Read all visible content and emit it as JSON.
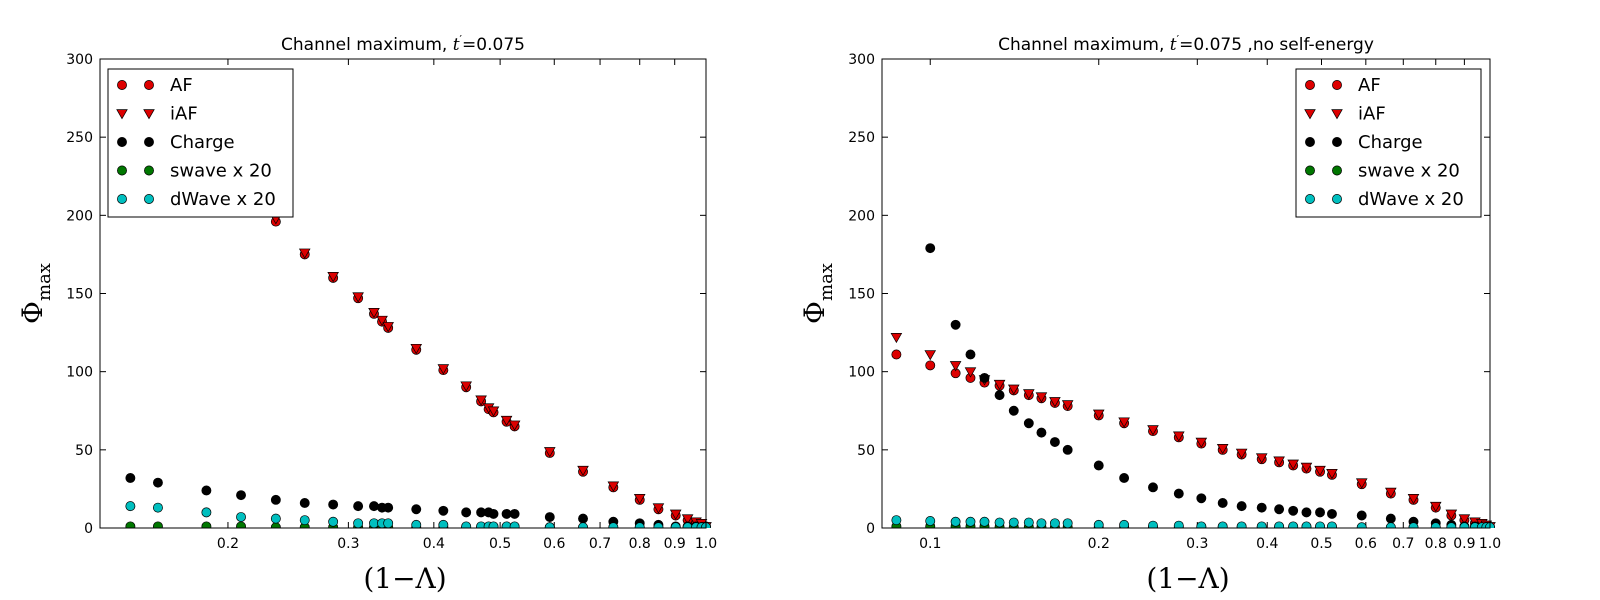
{
  "chart_data": [
    {
      "type": "scatter",
      "title_prefix": "Channel maximum, ",
      "title_tprime": "t",
      "title_mid": "=0.075",
      "title_suffix": "",
      "xlabel": "(1−Λ)",
      "ylabel_main": "Φ",
      "ylabel_sub": "max",
      "x_scale": "log",
      "xlim": [
        0.13,
        1.0
      ],
      "ylim": [
        0,
        300
      ],
      "yticks": [
        0,
        50,
        100,
        150,
        200,
        250,
        300
      ],
      "xticks": [
        {
          "value": 0.2,
          "label": "0.2"
        },
        {
          "value": 0.3,
          "label": "0.3"
        },
        {
          "value": 0.4,
          "label": "0.4"
        },
        {
          "value": 0.5,
          "label": "0.5"
        },
        {
          "value": 0.6,
          "label": "0.6"
        },
        {
          "value": 0.7,
          "label": "0.7"
        },
        {
          "value": 0.8,
          "label": "0.8"
        },
        {
          "value": 0.9,
          "label": "0.9"
        },
        {
          "value": 1.0,
          "label": "1.0"
        }
      ],
      "grid": false,
      "legend_position": "upper-left",
      "series": [
        {
          "name": "AF",
          "marker": "circle",
          "color": "#dd0000",
          "x": [
            0.235,
            0.259,
            0.285,
            0.31,
            0.327,
            0.336,
            0.343,
            0.377,
            0.413,
            0.446,
            0.469,
            0.481,
            0.489,
            0.511,
            0.525,
            0.591,
            0.661,
            0.732,
            0.8,
            0.852,
            0.903,
            0.94,
            0.967,
            0.985,
            1.0
          ],
          "y": [
            196,
            175,
            160,
            147,
            137,
            132,
            128,
            114,
            101,
            90,
            81,
            76,
            74,
            68,
            65,
            48,
            36,
            26,
            18,
            12,
            8,
            5,
            3,
            2,
            1
          ]
        },
        {
          "name": "iAF",
          "marker": "triangle-down",
          "color": "#dd0000",
          "x": [
            0.235,
            0.259,
            0.285,
            0.31,
            0.327,
            0.336,
            0.343,
            0.377,
            0.413,
            0.446,
            0.469,
            0.481,
            0.489,
            0.511,
            0.525,
            0.591,
            0.661,
            0.732,
            0.8,
            0.852,
            0.903,
            0.94,
            0.967,
            0.985,
            1.0
          ],
          "y": [
            198,
            176,
            161,
            148,
            138,
            133,
            129,
            115,
            102,
            91,
            82,
            77,
            75,
            69,
            66,
            49,
            37,
            27,
            19,
            13,
            9,
            6,
            4,
            3,
            1
          ]
        },
        {
          "name": "Charge",
          "marker": "circle",
          "color": "#000000",
          "x": [
            0.144,
            0.158,
            0.186,
            0.209,
            0.235,
            0.259,
            0.285,
            0.31,
            0.327,
            0.336,
            0.343,
            0.377,
            0.413,
            0.446,
            0.469,
            0.481,
            0.489,
            0.511,
            0.525,
            0.591,
            0.661,
            0.732,
            0.8,
            0.852,
            0.903,
            0.94,
            0.967,
            1.0
          ],
          "y": [
            32,
            29,
            24,
            21,
            18,
            16,
            15,
            14,
            14,
            13,
            13,
            12,
            11,
            10,
            10,
            10,
            9,
            9,
            9,
            7,
            6,
            4,
            3,
            2,
            1,
            1,
            1,
            0
          ]
        },
        {
          "name": "swave x 20",
          "marker": "circle",
          "color": "#007700",
          "x": [
            0.144,
            0.158,
            0.186,
            0.209,
            0.235,
            0.259,
            0.285,
            0.31,
            0.327,
            0.336,
            0.343,
            0.377,
            0.413,
            0.446,
            0.469,
            0.481,
            0.489,
            0.511,
            0.525,
            0.591,
            0.661,
            0.732,
            0.8,
            0.852,
            0.903,
            0.94,
            0.967,
            1.0
          ],
          "y": [
            1,
            1,
            1,
            1,
            0.5,
            0.5,
            0.5,
            0.5,
            0.5,
            0.5,
            0.5,
            0.5,
            0.5,
            0.5,
            0.5,
            0.5,
            0.5,
            0.5,
            0.5,
            0.5,
            0,
            0,
            0,
            0,
            0,
            0,
            0,
            0
          ]
        },
        {
          "name": "dWave x 20",
          "marker": "circle",
          "color": "#00bfbf",
          "x": [
            0.144,
            0.158,
            0.186,
            0.209,
            0.235,
            0.259,
            0.285,
            0.31,
            0.327,
            0.336,
            0.343,
            0.377,
            0.413,
            0.446,
            0.469,
            0.481,
            0.489,
            0.511,
            0.525,
            0.591,
            0.661,
            0.732,
            0.8,
            0.852,
            0.903,
            0.94,
            0.967,
            0.985,
            1.0
          ],
          "y": [
            14,
            13,
            10,
            7,
            6,
            5,
            4,
            3,
            3,
            3,
            3,
            2,
            2,
            1,
            1,
            1,
            1,
            1,
            1,
            0.5,
            0.5,
            0.5,
            0.5,
            0.5,
            0.5,
            0.5,
            0.5,
            0.5,
            0.5
          ]
        }
      ]
    },
    {
      "type": "scatter",
      "title_prefix": "Channel maximum, ",
      "title_tprime": "t",
      "title_mid": "=0.075",
      "title_suffix": " ,no self-energy",
      "xlabel": "(1−Λ)",
      "ylabel_main": "Φ",
      "ylabel_sub": "max",
      "x_scale": "log",
      "xlim": [
        0.082,
        1.0
      ],
      "ylim": [
        0,
        300
      ],
      "yticks": [
        0,
        50,
        100,
        150,
        200,
        250,
        300
      ],
      "xticks": [
        {
          "value": 0.1,
          "label": "0.1"
        },
        {
          "value": 0.2,
          "label": "0.2"
        },
        {
          "value": 0.3,
          "label": "0.3"
        },
        {
          "value": 0.4,
          "label": "0.4"
        },
        {
          "value": 0.5,
          "label": "0.5"
        },
        {
          "value": 0.6,
          "label": "0.6"
        },
        {
          "value": 0.7,
          "label": "0.7"
        },
        {
          "value": 0.8,
          "label": "0.8"
        },
        {
          "value": 0.9,
          "label": "0.9"
        },
        {
          "value": 1.0,
          "label": "1.0"
        }
      ],
      "grid": false,
      "legend_position": "upper-right",
      "series": [
        {
          "name": "AF",
          "marker": "circle",
          "color": "#dd0000",
          "x": [
            0.087,
            0.1,
            0.111,
            0.118,
            0.125,
            0.133,
            0.141,
            0.15,
            0.158,
            0.167,
            0.176,
            0.2,
            0.222,
            0.25,
            0.278,
            0.305,
            0.333,
            0.36,
            0.391,
            0.42,
            0.445,
            0.47,
            0.497,
            0.522,
            0.59,
            0.665,
            0.73,
            0.8,
            0.853,
            0.9,
            0.94,
            0.967,
            0.985,
            1.0
          ],
          "y": [
            111,
            104,
            99,
            96,
            93,
            91,
            88,
            85,
            83,
            80,
            78,
            72,
            67,
            62,
            58,
            54,
            50,
            47,
            44,
            42,
            40,
            38,
            36,
            34,
            28,
            22,
            18,
            13,
            8,
            5,
            3,
            2,
            1,
            0.5
          ]
        },
        {
          "name": "iAF",
          "marker": "triangle-down",
          "color": "#dd0000",
          "x": [
            0.087,
            0.1,
            0.111,
            0.118,
            0.125,
            0.133,
            0.141,
            0.15,
            0.158,
            0.167,
            0.176,
            0.2,
            0.222,
            0.25,
            0.278,
            0.305,
            0.333,
            0.36,
            0.391,
            0.42,
            0.445,
            0.47,
            0.497,
            0.522,
            0.59,
            0.665,
            0.73,
            0.8,
            0.853,
            0.9,
            0.94,
            0.967,
            0.985,
            1.0
          ],
          "y": [
            122,
            111,
            104,
            100,
            95,
            92,
            89,
            86,
            84,
            81,
            79,
            73,
            68,
            63,
            59,
            55,
            51,
            48,
            45,
            43,
            41,
            39,
            37,
            35,
            29,
            23,
            19,
            14,
            9,
            6,
            4,
            3,
            2,
            1
          ]
        },
        {
          "name": "Charge",
          "marker": "circle",
          "color": "#000000",
          "x": [
            0.1,
            0.111,
            0.118,
            0.125,
            0.133,
            0.141,
            0.15,
            0.158,
            0.167,
            0.176,
            0.2,
            0.222,
            0.25,
            0.278,
            0.305,
            0.333,
            0.36,
            0.391,
            0.42,
            0.445,
            0.47,
            0.497,
            0.522,
            0.59,
            0.665,
            0.73,
            0.8,
            0.853,
            0.9,
            0.94,
            0.967,
            1.0
          ],
          "y": [
            179,
            130,
            111,
            96,
            85,
            75,
            67,
            61,
            55,
            50,
            40,
            32,
            26,
            22,
            19,
            16,
            14,
            13,
            12,
            11,
            10,
            10,
            9,
            8,
            6,
            4,
            3,
            2,
            1,
            1,
            0.5,
            0
          ]
        },
        {
          "name": "swave x 20",
          "marker": "circle",
          "color": "#007700",
          "x": [
            0.087,
            0.1,
            0.111,
            0.118,
            0.125,
            0.133,
            0.141,
            0.15,
            0.158,
            0.167,
            0.176,
            0.2,
            0.222,
            0.25,
            0.278,
            0.305,
            0.333,
            0.36,
            0.391,
            0.42,
            0.445,
            0.47,
            0.497,
            0.522,
            0.59,
            0.665,
            0.73,
            0.8,
            0.853,
            0.9,
            0.94,
            0.967,
            1.0
          ],
          "y": [
            1,
            1,
            1,
            1,
            1,
            0.5,
            0.5,
            0.5,
            0.5,
            0.5,
            0.5,
            0.5,
            0.5,
            0.5,
            0.5,
            0.5,
            0.5,
            0.5,
            0.5,
            0.5,
            0.5,
            0.5,
            0.5,
            0.5,
            0,
            0,
            0,
            0,
            0,
            0,
            0,
            0,
            0
          ]
        },
        {
          "name": "dWave x 20",
          "marker": "circle",
          "color": "#00bfbf",
          "x": [
            0.087,
            0.1,
            0.111,
            0.118,
            0.125,
            0.133,
            0.141,
            0.15,
            0.158,
            0.167,
            0.176,
            0.2,
            0.222,
            0.25,
            0.278,
            0.305,
            0.333,
            0.36,
            0.391,
            0.42,
            0.445,
            0.47,
            0.497,
            0.522,
            0.59,
            0.665,
            0.73,
            0.8,
            0.853,
            0.9,
            0.94,
            0.967,
            0.985,
            1.0
          ],
          "y": [
            5,
            4.5,
            4,
            4,
            4,
            3.5,
            3.5,
            3.5,
            3,
            3,
            3,
            2,
            2,
            1.5,
            1.5,
            1,
            1,
            1,
            1,
            1,
            1,
            1,
            1,
            1,
            0.5,
            0.5,
            0.5,
            0.5,
            0.5,
            0.5,
            0.5,
            0.5,
            0.5,
            0.5
          ]
        }
      ]
    }
  ]
}
